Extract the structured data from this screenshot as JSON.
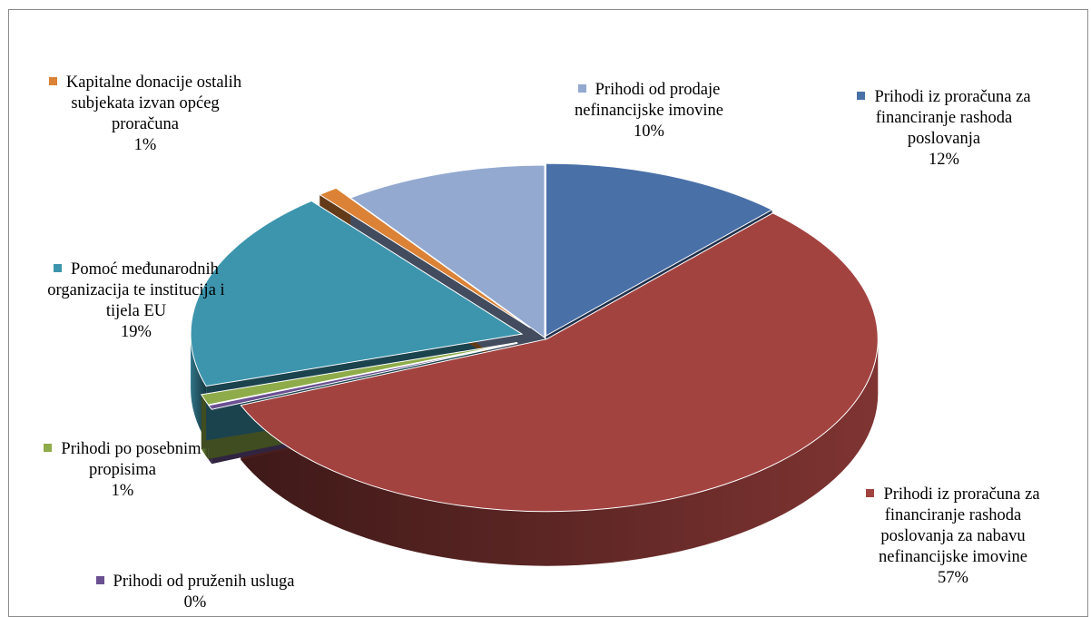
{
  "chart_data": {
    "type": "pie",
    "style": "3d-exploded",
    "slices": [
      {
        "label": "Prihodi iz proračuna za\nfinanciranje rashoda\nposlovanja",
        "value": 12,
        "value_label": "12%",
        "color": "#4a70a8"
      },
      {
        "label": "Prihodi iz proračuna za\nfinanciranje rashoda\nposlovanja za nabavu\nnefinancijske imovine",
        "value": 57,
        "value_label": "57%",
        "color": "#a34340"
      },
      {
        "label": "Prihodi od pruženih usluga",
        "value": 0.4,
        "value_label": "0%",
        "color": "#6a5091"
      },
      {
        "label": "Prihodi po posebnim\npropisima",
        "value": 1,
        "value_label": "1%",
        "color": "#8eac49"
      },
      {
        "label": "Pomoć međunarodnih\norganizacija te institucija i\ntijela EU",
        "value": 19,
        "value_label": "19%",
        "color": "#3d95ad"
      },
      {
        "label": "Kapitalne donacije ostalih\nsubjekata izvan općeg\nproračuna",
        "value": 1,
        "value_label": "1%",
        "color": "#db8236"
      },
      {
        "label": "Prihodi od prodaje\nnefinancijske imovine",
        "value": 10,
        "value_label": "10%",
        "color": "#93a9d0"
      }
    ]
  }
}
